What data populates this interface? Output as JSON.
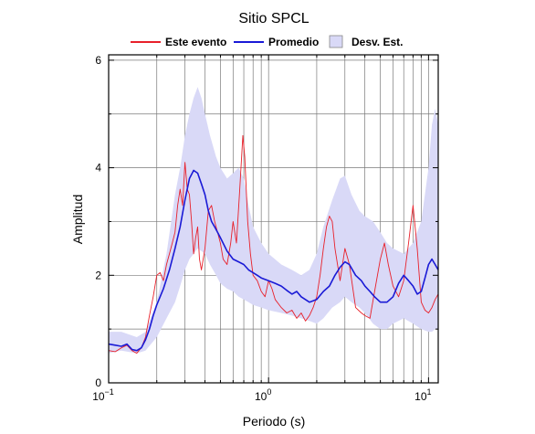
{
  "chart_data": {
    "type": "line",
    "title": "Sitio SPCL",
    "xlabel": "Periodo (s)",
    "ylabel": "Amplitud",
    "xscale": "log",
    "xlim": [
      0.1,
      11.5
    ],
    "ylim": [
      0,
      6.1
    ],
    "x_ticks": [
      {
        "value": 0.1,
        "base": "10",
        "exp": "−1"
      },
      {
        "value": 1,
        "base": "10",
        "exp": "0"
      },
      {
        "value": 10,
        "base": "10",
        "exp": "1"
      }
    ],
    "y_ticks": [
      {
        "value": 0,
        "label": "0"
      },
      {
        "value": 2,
        "label": "2"
      },
      {
        "value": 4,
        "label": "4"
      },
      {
        "value": 6,
        "label": "6"
      }
    ],
    "grid": true,
    "legend_position": "top-center",
    "legend": [
      {
        "name": "Este evento",
        "kind": "line",
        "color": "#e8202a"
      },
      {
        "name": "Promedio",
        "kind": "line",
        "color": "#1a1ad6"
      },
      {
        "name": "Desv. Est.",
        "kind": "band",
        "color": "#d9d9f7"
      }
    ],
    "band": {
      "name": "Desv. Est.",
      "color": "#d9d9f7",
      "x": [
        0.1,
        0.12,
        0.15,
        0.17,
        0.2,
        0.23,
        0.26,
        0.28,
        0.3,
        0.32,
        0.34,
        0.36,
        0.38,
        0.4,
        0.43,
        0.47,
        0.5,
        0.55,
        0.6,
        0.65,
        0.7,
        0.75,
        0.8,
        0.9,
        1.0,
        1.2,
        1.4,
        1.6,
        1.8,
        2.0,
        2.2,
        2.5,
        2.8,
        3.0,
        3.3,
        3.7,
        4.0,
        4.5,
        5.0,
        5.5,
        6.0,
        7.0,
        8.0,
        9.0,
        10.0,
        10.5,
        11.0,
        11.5
      ],
      "lower": [
        0.55,
        0.6,
        0.55,
        0.6,
        0.85,
        1.2,
        1.5,
        1.8,
        2.1,
        2.3,
        2.4,
        2.5,
        2.45,
        2.4,
        2.2,
        2.0,
        1.85,
        1.75,
        1.7,
        1.6,
        1.55,
        1.5,
        1.45,
        1.4,
        1.35,
        1.3,
        1.25,
        1.2,
        1.15,
        1.1,
        1.2,
        1.4,
        1.5,
        1.6,
        1.5,
        1.4,
        1.3,
        1.1,
        1.0,
        1.0,
        1.1,
        1.2,
        1.1,
        1.0,
        0.95,
        0.95,
        1.0,
        1.0
      ],
      "upper": [
        0.95,
        0.95,
        0.85,
        0.95,
        1.5,
        2.4,
        3.5,
        4.0,
        4.6,
        5.0,
        5.3,
        5.5,
        5.3,
        5.0,
        4.6,
        4.2,
        4.0,
        3.8,
        3.9,
        4.0,
        3.8,
        3.3,
        2.9,
        2.6,
        2.4,
        2.2,
        2.1,
        2.0,
        2.1,
        2.4,
        2.9,
        3.4,
        3.8,
        3.85,
        3.5,
        3.2,
        3.1,
        3.0,
        2.8,
        2.6,
        2.5,
        2.4,
        2.6,
        3.0,
        4.0,
        4.8,
        5.1,
        4.8
      ]
    },
    "series": [
      {
        "name": "Promedio",
        "color": "#1a1ad6",
        "x": [
          0.1,
          0.11,
          0.12,
          0.13,
          0.14,
          0.15,
          0.16,
          0.17,
          0.18,
          0.19,
          0.2,
          0.22,
          0.24,
          0.26,
          0.28,
          0.3,
          0.32,
          0.34,
          0.36,
          0.38,
          0.4,
          0.42,
          0.44,
          0.46,
          0.48,
          0.5,
          0.55,
          0.6,
          0.65,
          0.7,
          0.75,
          0.8,
          0.85,
          0.9,
          1.0,
          1.1,
          1.2,
          1.3,
          1.4,
          1.5,
          1.6,
          1.8,
          2.0,
          2.2,
          2.4,
          2.6,
          2.8,
          3.0,
          3.2,
          3.5,
          3.8,
          4.0,
          4.3,
          4.6,
          5.0,
          5.5,
          6.0,
          6.5,
          7.0,
          7.5,
          8.0,
          8.5,
          9.0,
          9.5,
          10.0,
          10.5,
          11.0,
          11.5
        ],
        "y": [
          0.72,
          0.7,
          0.68,
          0.72,
          0.62,
          0.6,
          0.65,
          0.8,
          1.0,
          1.25,
          1.45,
          1.75,
          2.1,
          2.5,
          2.9,
          3.4,
          3.8,
          3.95,
          3.9,
          3.7,
          3.5,
          3.2,
          3.0,
          2.9,
          2.8,
          2.7,
          2.45,
          2.3,
          2.25,
          2.2,
          2.1,
          2.05,
          2.0,
          1.95,
          1.9,
          1.85,
          1.8,
          1.72,
          1.65,
          1.7,
          1.6,
          1.5,
          1.55,
          1.7,
          1.8,
          2.0,
          2.15,
          2.25,
          2.2,
          2.0,
          1.9,
          1.8,
          1.7,
          1.6,
          1.5,
          1.5,
          1.6,
          1.85,
          2.0,
          1.9,
          1.8,
          1.65,
          1.7,
          1.95,
          2.2,
          2.3,
          2.2,
          2.1
        ]
      },
      {
        "name": "Este evento",
        "color": "#e8202a",
        "x": [
          0.1,
          0.11,
          0.12,
          0.13,
          0.14,
          0.15,
          0.16,
          0.17,
          0.18,
          0.19,
          0.2,
          0.21,
          0.22,
          0.23,
          0.24,
          0.25,
          0.26,
          0.27,
          0.28,
          0.29,
          0.3,
          0.31,
          0.32,
          0.33,
          0.34,
          0.35,
          0.36,
          0.37,
          0.38,
          0.4,
          0.42,
          0.44,
          0.46,
          0.48,
          0.5,
          0.52,
          0.55,
          0.58,
          0.6,
          0.63,
          0.66,
          0.69,
          0.71,
          0.74,
          0.77,
          0.8,
          0.85,
          0.9,
          0.95,
          1.0,
          1.05,
          1.1,
          1.2,
          1.3,
          1.4,
          1.5,
          1.6,
          1.7,
          1.8,
          1.9,
          2.0,
          2.1,
          2.2,
          2.3,
          2.4,
          2.5,
          2.6,
          2.8,
          3.0,
          3.2,
          3.5,
          3.8,
          4.0,
          4.3,
          4.6,
          5.0,
          5.3,
          5.6,
          6.0,
          6.5,
          7.0,
          7.5,
          8.0,
          8.5,
          9.0,
          9.5,
          10.0,
          10.5,
          11.0,
          11.5
        ],
        "y": [
          0.6,
          0.58,
          0.65,
          0.7,
          0.6,
          0.55,
          0.65,
          0.85,
          1.25,
          1.6,
          2.0,
          2.05,
          1.9,
          2.2,
          2.4,
          2.6,
          2.8,
          3.3,
          3.6,
          3.3,
          4.1,
          3.6,
          3.5,
          3.0,
          2.4,
          2.7,
          2.9,
          2.3,
          2.1,
          2.5,
          3.2,
          3.3,
          3.0,
          2.8,
          2.6,
          2.3,
          2.2,
          2.6,
          3.0,
          2.6,
          3.6,
          4.6,
          4.2,
          3.0,
          2.4,
          2.0,
          1.9,
          1.7,
          1.6,
          1.9,
          1.75,
          1.55,
          1.4,
          1.3,
          1.35,
          1.2,
          1.3,
          1.15,
          1.25,
          1.4,
          1.6,
          2.0,
          2.5,
          2.9,
          3.1,
          3.0,
          2.5,
          1.9,
          2.5,
          2.2,
          1.4,
          1.3,
          1.25,
          1.2,
          1.7,
          2.3,
          2.6,
          2.2,
          1.8,
          1.6,
          1.9,
          2.6,
          3.3,
          2.5,
          1.5,
          1.35,
          1.3,
          1.4,
          1.55,
          1.65
        ]
      }
    ]
  }
}
